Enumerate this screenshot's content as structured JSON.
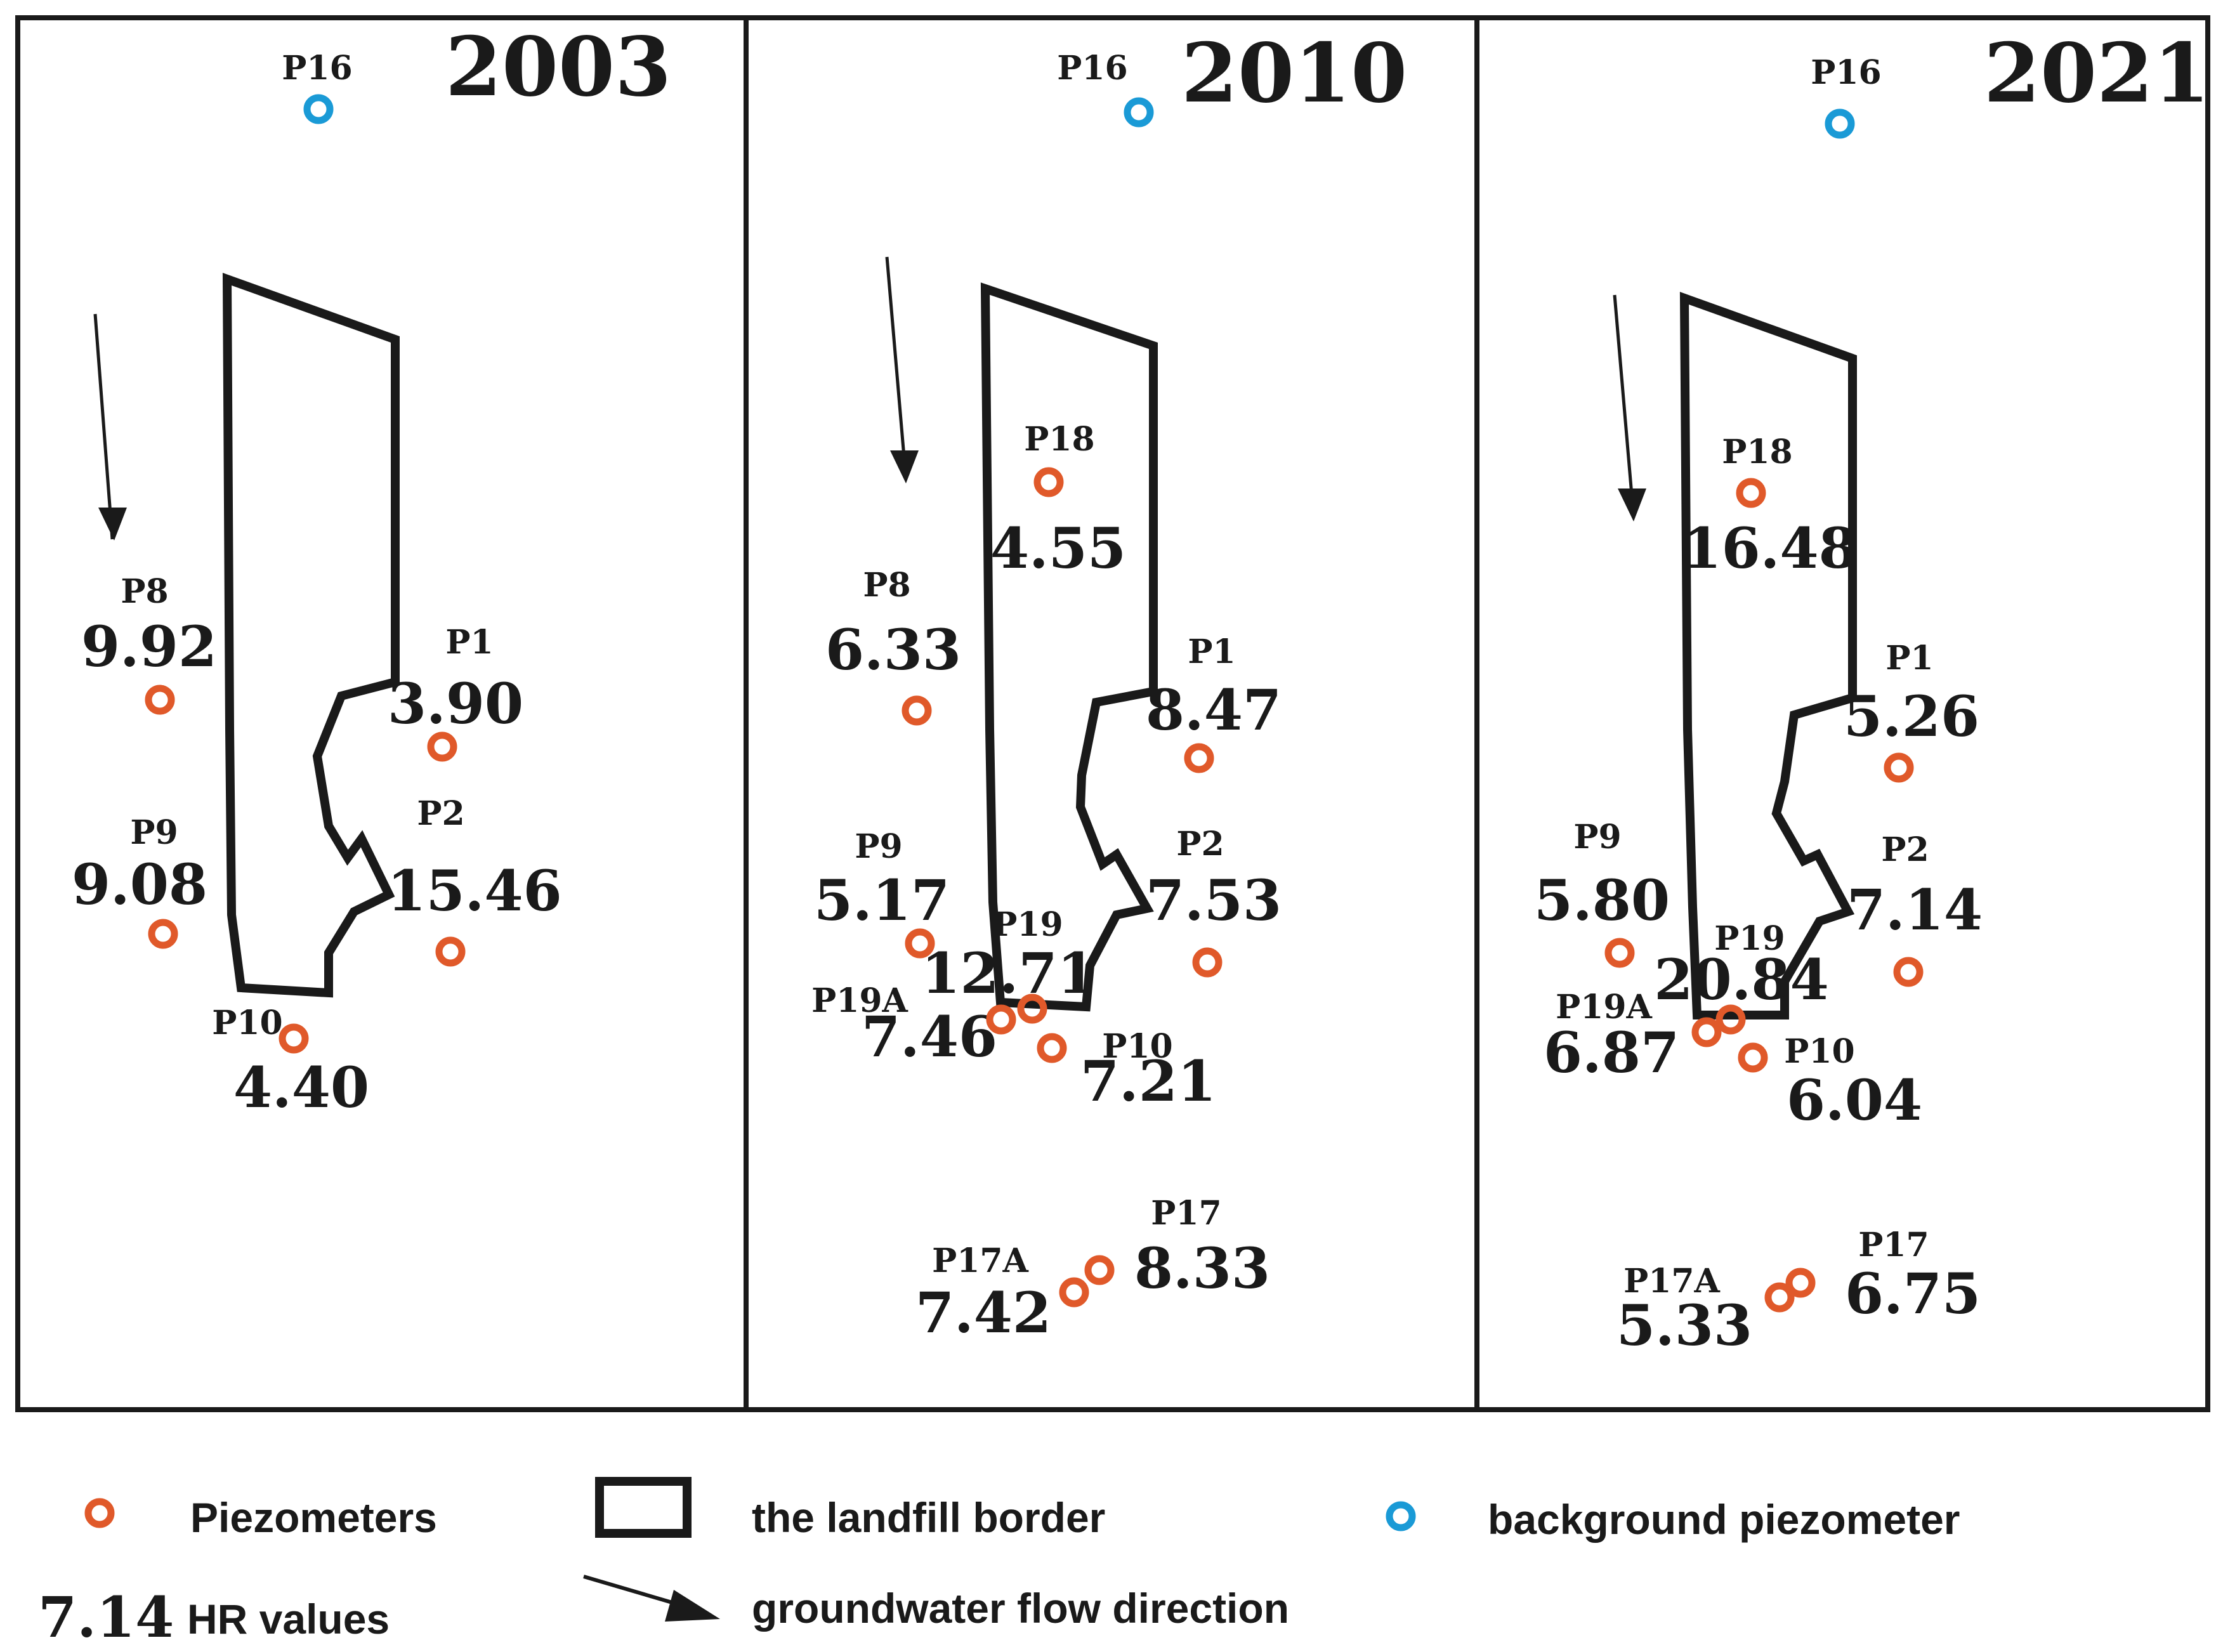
{
  "colors": {
    "piezometer": "#e0592a",
    "background_piezometer": "#1a9ad6",
    "ink": "#1a1a1a"
  },
  "panels": [
    {
      "year": "2003",
      "piezometers": [
        {
          "id": "P16",
          "value": "",
          "type": "background"
        },
        {
          "id": "P8",
          "value": "9.92",
          "type": "regular"
        },
        {
          "id": "P1",
          "value": "3.90",
          "type": "regular"
        },
        {
          "id": "P9",
          "value": "9.08",
          "type": "regular"
        },
        {
          "id": "P2",
          "value": "15.46",
          "type": "regular"
        },
        {
          "id": "P10",
          "value": "4.40",
          "type": "regular"
        }
      ]
    },
    {
      "year": "2010",
      "piezometers": [
        {
          "id": "P16",
          "value": "",
          "type": "background"
        },
        {
          "id": "P18",
          "value": "4.55",
          "type": "regular"
        },
        {
          "id": "P8",
          "value": "6.33",
          "type": "regular"
        },
        {
          "id": "P1",
          "value": "8.47",
          "type": "regular"
        },
        {
          "id": "P9",
          "value": "5.17",
          "type": "regular"
        },
        {
          "id": "P2",
          "value": "7.53",
          "type": "regular"
        },
        {
          "id": "P19",
          "value": "12.71",
          "type": "regular"
        },
        {
          "id": "P19A",
          "value": "7.46",
          "type": "regular"
        },
        {
          "id": "P10",
          "value": "7.21",
          "type": "regular"
        },
        {
          "id": "P17A",
          "value": "7.42",
          "type": "regular"
        },
        {
          "id": "P17",
          "value": "8.33",
          "type": "regular"
        }
      ]
    },
    {
      "year": "2021",
      "piezometers": [
        {
          "id": "P16",
          "value": "",
          "type": "background"
        },
        {
          "id": "P18",
          "value": "16.48",
          "type": "regular"
        },
        {
          "id": "P1",
          "value": "5.26",
          "type": "regular"
        },
        {
          "id": "P9",
          "value": "5.80",
          "type": "regular"
        },
        {
          "id": "P2",
          "value": "7.14",
          "type": "regular"
        },
        {
          "id": "P19",
          "value": "20.84",
          "type": "regular"
        },
        {
          "id": "P19A",
          "value": "6.87",
          "type": "regular"
        },
        {
          "id": "P10",
          "value": "6.04",
          "type": "regular"
        },
        {
          "id": "P17A",
          "value": "5.33",
          "type": "regular"
        },
        {
          "id": "P17",
          "value": "6.75",
          "type": "regular"
        }
      ]
    }
  ],
  "legend": {
    "piezometers": "Piezometers",
    "landfill_border": "the landfill border",
    "background_piezometer": "background piezometer",
    "hr_example_value": "7.14",
    "hr_values": "HR values",
    "flow_direction": "groundwater flow direction"
  }
}
